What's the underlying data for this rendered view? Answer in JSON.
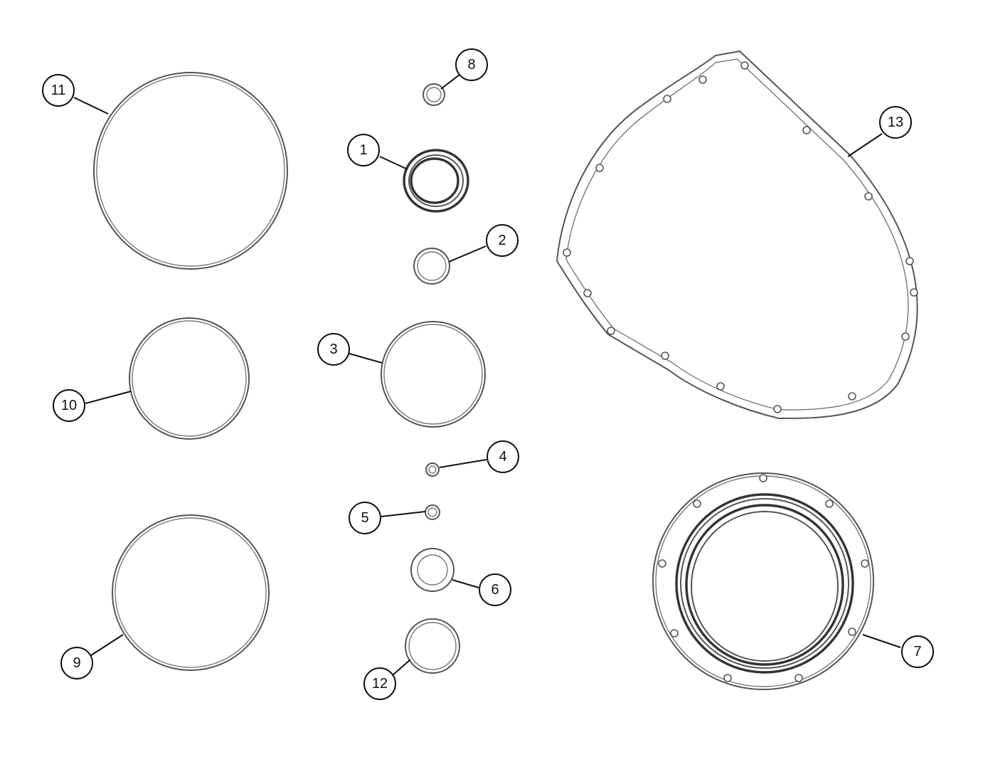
{
  "callouts": {
    "c1": "1",
    "c2": "2",
    "c3": "3",
    "c4": "4",
    "c5": "5",
    "c6": "6",
    "c7": "7",
    "c8": "8",
    "c9": "9",
    "c10": "10",
    "c11": "11",
    "c12": "12",
    "c13": "13"
  }
}
